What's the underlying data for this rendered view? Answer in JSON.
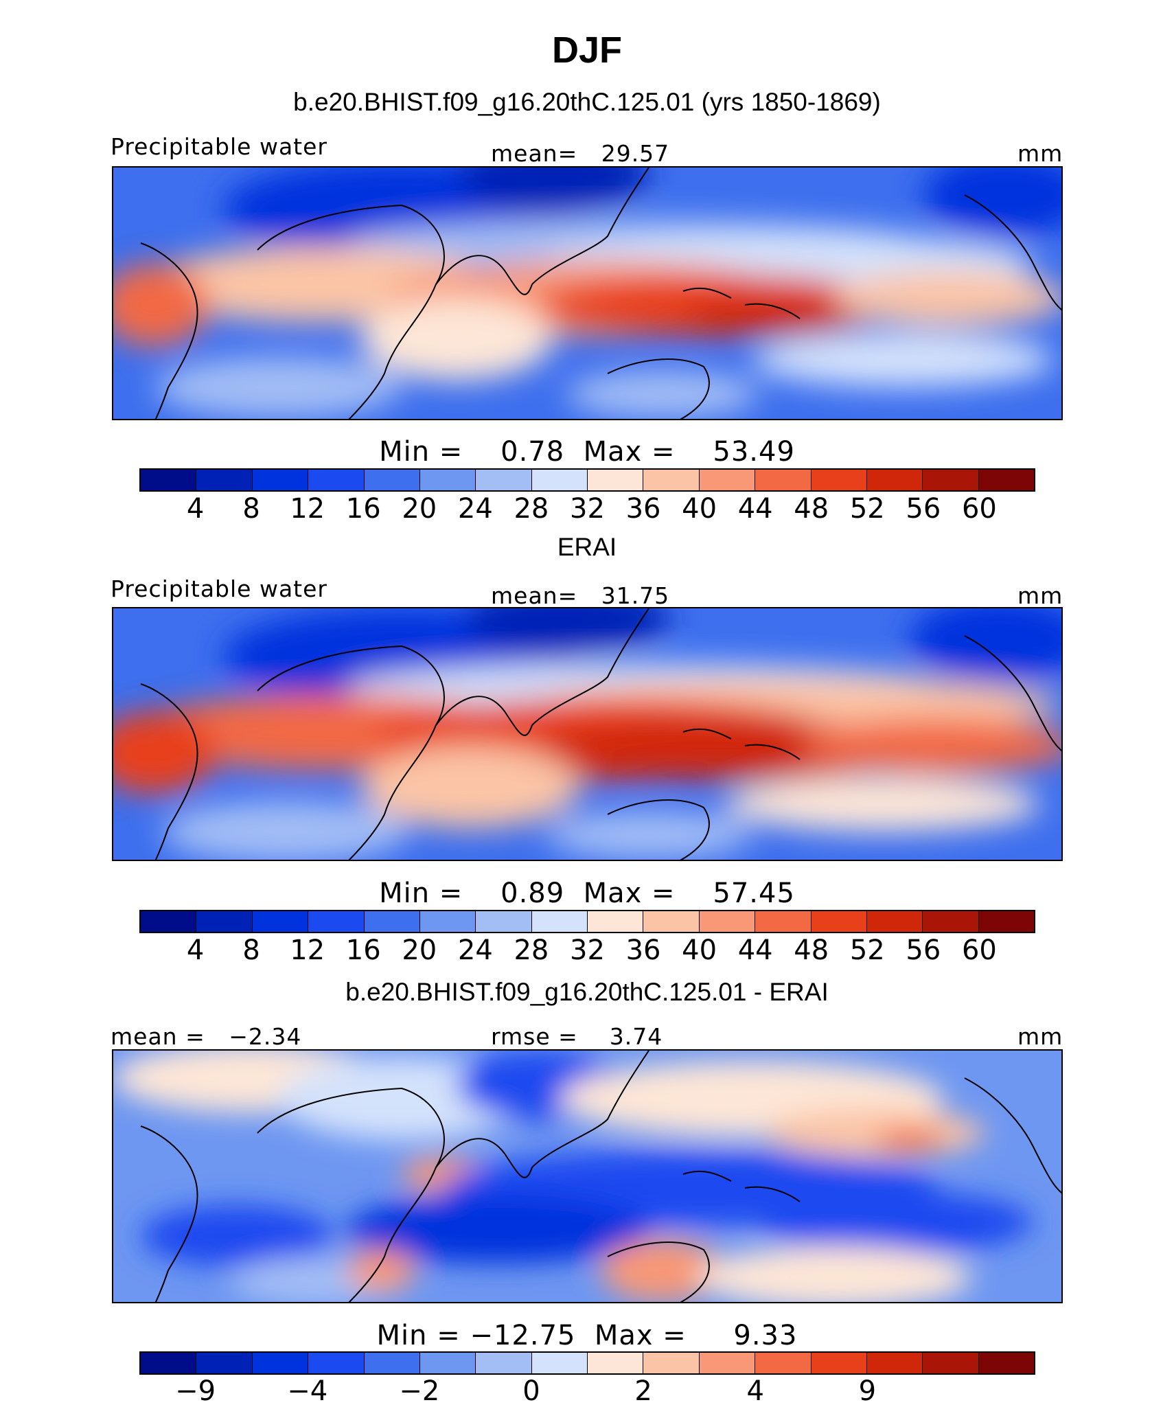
{
  "title": "DJF",
  "panels": [
    {
      "subtitle": "b.e20.BHIST.f09_g16.20thC.125.01 (yrs 1850-1869)",
      "left_label": "Precipitable water",
      "center_label": "mean=   29.57",
      "units": "mm",
      "minmax": "Min =    0.78  Max =    53.49",
      "colorbar": {
        "colors": [
          "#000d8a",
          "#0021b5",
          "#0033dd",
          "#1a4af0",
          "#3d6fee",
          "#6e97f1",
          "#a3bdf5",
          "#d4e2fb",
          "#fde6d7",
          "#fbc4a6",
          "#f89877",
          "#f26944",
          "#e8401a",
          "#d0270a",
          "#a91608",
          "#7d0505"
        ],
        "tick_labels": [
          "4",
          "8",
          "12",
          "16",
          "20",
          "24",
          "28",
          "32",
          "36",
          "40",
          "44",
          "48",
          "52",
          "56",
          "60"
        ]
      }
    },
    {
      "subtitle": "ERAI",
      "left_label": "Precipitable water",
      "center_label": "mean=   31.75",
      "units": "mm",
      "minmax": "Min =    0.89  Max =    57.45",
      "colorbar": {
        "colors": [
          "#000d8a",
          "#0021b5",
          "#0033dd",
          "#1a4af0",
          "#3d6fee",
          "#6e97f1",
          "#a3bdf5",
          "#d4e2fb",
          "#fde6d7",
          "#fbc4a6",
          "#f89877",
          "#f26944",
          "#e8401a",
          "#d0270a",
          "#a91608",
          "#7d0505"
        ],
        "tick_labels": [
          "4",
          "8",
          "12",
          "16",
          "20",
          "24",
          "28",
          "32",
          "36",
          "40",
          "44",
          "48",
          "52",
          "56",
          "60"
        ]
      }
    },
    {
      "subtitle": "b.e20.BHIST.f09_g16.20thC.125.01 - ERAI",
      "left_label": "mean =   −2.34",
      "center_label": "rmse =    3.74",
      "units": "mm",
      "minmax": "Min = −12.75  Max =     9.33",
      "colorbar": {
        "colors": [
          "#000d8a",
          "#0021b5",
          "#0033dd",
          "#1a4af0",
          "#3d6fee",
          "#6e97f1",
          "#a3bdf5",
          "#d4e2fb",
          "#fde6d7",
          "#fbc4a6",
          "#f89877",
          "#f26944",
          "#e8401a",
          "#d0270a",
          "#a91608",
          "#7d0505"
        ],
        "tick_labels": [
          "−9",
          "",
          "−4",
          "",
          "−2",
          "",
          "0",
          "",
          "2",
          "",
          "4",
          "",
          "9",
          "",
          ""
        ]
      }
    }
  ],
  "chart_data": [
    {
      "type": "heatmap",
      "title": "Precipitable water",
      "subtitle": "b.e20.BHIST.f09_g16.20thC.125.01 (yrs 1850-1869)",
      "units": "mm",
      "mean": 29.57,
      "min": 0.78,
      "max": 53.49,
      "levels": [
        4,
        8,
        12,
        16,
        20,
        24,
        28,
        32,
        36,
        40,
        44,
        48,
        52,
        56,
        60
      ]
    },
    {
      "type": "heatmap",
      "title": "Precipitable water",
      "subtitle": "ERAI",
      "units": "mm",
      "mean": 31.75,
      "min": 0.89,
      "max": 57.45,
      "levels": [
        4,
        8,
        12,
        16,
        20,
        24,
        28,
        32,
        36,
        40,
        44,
        48,
        52,
        56,
        60
      ]
    },
    {
      "type": "heatmap",
      "title": "b.e20.BHIST.f09_g16.20thC.125.01 - ERAI",
      "units": "mm",
      "mean": -2.34,
      "rmse": 3.74,
      "min": -12.75,
      "max": 9.33,
      "levels": [
        -9,
        -4,
        -2,
        0,
        2,
        4,
        9
      ]
    }
  ]
}
